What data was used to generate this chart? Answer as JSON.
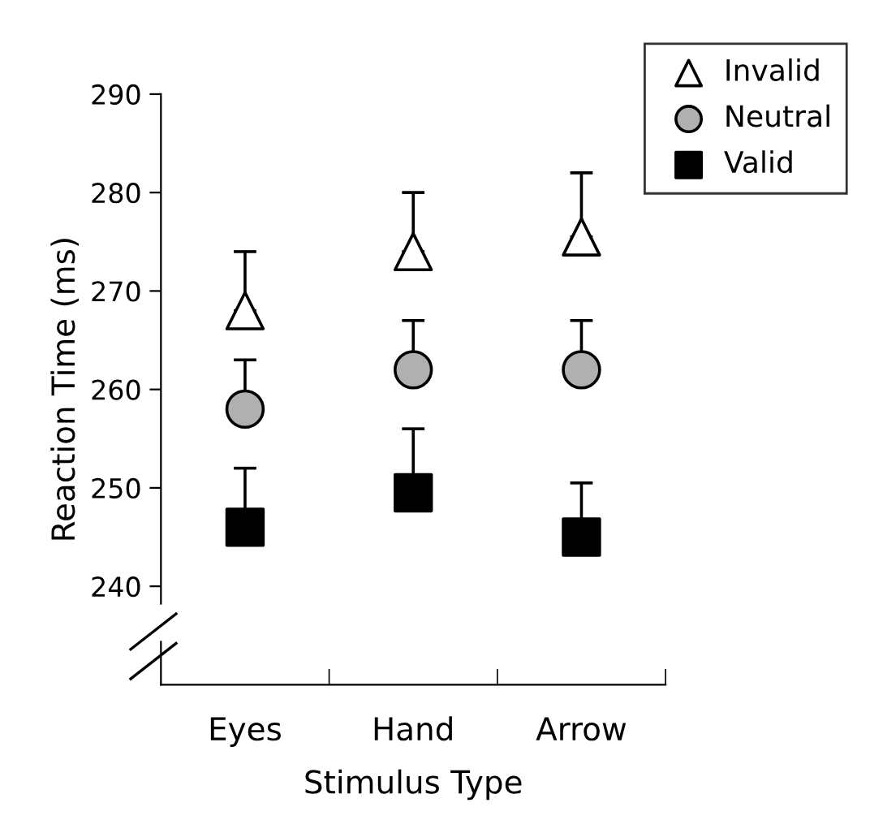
{
  "chart_data": {
    "type": "scatter",
    "xlabel": "Stimulus Type",
    "ylabel": "Reaction Time (ms)",
    "categories": [
      "Eyes",
      "Hand",
      "Arrow"
    ],
    "series": [
      {
        "name": "Invalid",
        "color": "#ffffff",
        "marker": "triangle",
        "values": [
          268,
          274,
          275.5
        ],
        "errors": [
          [
            268,
            274
          ],
          [
            274,
            280
          ],
          [
            275.5,
            282
          ]
        ]
      },
      {
        "name": "Neutral",
        "color": "#b0b0b0",
        "marker": "circle",
        "values": [
          258,
          262,
          262
        ],
        "errors": [
          [
            258,
            263
          ],
          [
            262,
            267
          ],
          [
            262,
            267
          ]
        ]
      },
      {
        "name": "Valid",
        "color": "#000000",
        "marker": "square",
        "values": [
          246,
          249.5,
          245
        ],
        "errors": [
          [
            246,
            252
          ],
          [
            249.5,
            256
          ],
          [
            245,
            250.5
          ]
        ]
      }
    ],
    "ylim": [
      230,
      290
    ],
    "yticks": [
      240,
      250,
      260,
      270,
      280,
      290
    ],
    "legend": "top right",
    "grid": false
  }
}
